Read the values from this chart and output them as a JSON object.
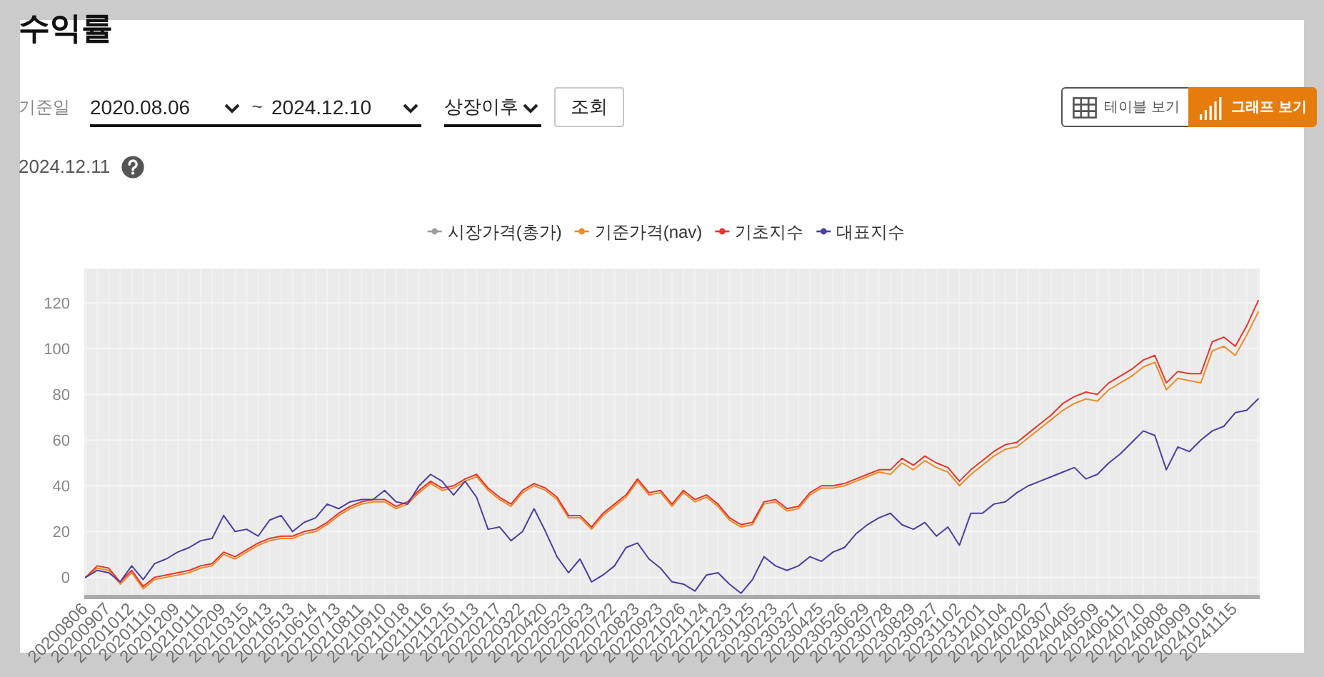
{
  "chart_data": {
    "type": "line",
    "title": "수익률",
    "subtitle": "2024.12.11",
    "annotations": [
      "기준일",
      "2020.08.06",
      "~",
      "2024.12.10",
      "상장이후",
      "조회",
      "테이블 보기",
      "그래프 보기"
    ],
    "categories": [
      "20200806",
      null,
      "20200907",
      null,
      "20201012",
      null,
      "20201110",
      null,
      "20201209",
      null,
      "20210111",
      null,
      "20210209",
      null,
      "20210315",
      null,
      "20210413",
      null,
      "20210513",
      null,
      "20210614",
      null,
      "20210713",
      null,
      "20210811",
      null,
      "20210910",
      null,
      "20211018",
      null,
      "20211116",
      null,
      "20211215",
      null,
      "20220113",
      null,
      "20220217",
      null,
      "20220322",
      null,
      "20220420",
      null,
      "20220523",
      null,
      "20220623",
      null,
      "20220722",
      null,
      "20220823",
      null,
      "20220923",
      null,
      "20221026",
      null,
      "20221124",
      null,
      "20221223",
      null,
      "20230125",
      null,
      "20230223",
      null,
      "20230327",
      null,
      "20230425",
      null,
      "20230526",
      null,
      "20230629",
      null,
      "20230728",
      null,
      "20230829",
      null,
      "20230927",
      null,
      "20231102",
      null,
      "20231201",
      null,
      "20240104",
      null,
      "20240202",
      null,
      "20240307",
      null,
      "20240405",
      null,
      "20240509",
      null,
      "20240611",
      null,
      "20240710",
      null,
      "20240808",
      null,
      "20240909",
      null,
      "20241016",
      null,
      "20241115",
      null,
      null
    ],
    "series": [
      {
        "name": "시장가격(총가)",
        "color": "#9e9e9e",
        "values": [
          null,
          null,
          null,
          null,
          null,
          null,
          null,
          null,
          null,
          null,
          null,
          null,
          null,
          null,
          null,
          null,
          null,
          null,
          null,
          null,
          null,
          null,
          null,
          null,
          null,
          null,
          null,
          null,
          null,
          null,
          null,
          null,
          null,
          null,
          null,
          null,
          null,
          null,
          null,
          null,
          null,
          null,
          null,
          null,
          null,
          null,
          null,
          null,
          null,
          null,
          null,
          null,
          null,
          null,
          null,
          null,
          null,
          null,
          null,
          null,
          null,
          null,
          null,
          null,
          null,
          null,
          null,
          null,
          null,
          null,
          null,
          null,
          null,
          null,
          null,
          null,
          null,
          null,
          null,
          null,
          null,
          null,
          null,
          null,
          null,
          null,
          null,
          null,
          null,
          null,
          null,
          null,
          null,
          null,
          null,
          null,
          null,
          null,
          null,
          null,
          null,
          null,
          null
        ]
      },
      {
        "name": "기준가격(nav)",
        "color": "#f08a24",
        "values": [
          0,
          4,
          3,
          -3,
          2,
          -5,
          -1,
          0,
          1,
          2,
          4,
          5,
          10,
          8,
          11,
          14,
          16,
          17,
          17,
          19,
          20,
          23,
          27,
          30,
          32,
          33,
          33,
          30,
          32,
          37,
          41,
          38,
          39,
          42,
          44,
          38,
          34,
          31,
          37,
          40,
          38,
          34,
          26,
          26,
          21,
          27,
          31,
          35,
          42,
          36,
          37,
          31,
          37,
          33,
          35,
          31,
          25,
          22,
          23,
          32,
          33,
          29,
          30,
          36,
          39,
          39,
          40,
          42,
          44,
          46,
          45,
          50,
          47,
          51,
          48,
          46,
          40,
          45,
          49,
          53,
          56,
          57,
          61,
          65,
          69,
          73,
          76,
          78,
          77,
          82,
          85,
          88,
          92,
          94,
          82,
          87,
          86,
          85,
          99,
          101,
          97,
          106,
          116
        ]
      },
      {
        "name": "기초지수",
        "color": "#e8352b",
        "values": [
          0,
          5,
          4,
          -2,
          3,
          -4,
          0,
          1,
          2,
          3,
          5,
          6,
          11,
          9,
          12,
          15,
          17,
          18,
          18,
          20,
          21,
          24,
          28,
          31,
          33,
          34,
          34,
          31,
          33,
          38,
          42,
          39,
          40,
          43,
          45,
          39,
          35,
          32,
          38,
          41,
          39,
          35,
          27,
          27,
          22,
          28,
          32,
          36,
          43,
          37,
          38,
          32,
          38,
          34,
          36,
          32,
          26,
          23,
          24,
          33,
          34,
          30,
          31,
          37,
          40,
          40,
          41,
          43,
          45,
          47,
          47,
          52,
          49,
          53,
          50,
          48,
          42,
          47,
          51,
          55,
          58,
          59,
          63,
          67,
          71,
          76,
          79,
          81,
          80,
          85,
          88,
          91,
          95,
          97,
          85,
          90,
          89,
          89,
          103,
          105,
          101,
          110,
          121
        ]
      },
      {
        "name": "대표지수",
        "color": "#4a3fa5",
        "values": [
          0,
          3,
          2,
          -2,
          5,
          -1,
          6,
          8,
          11,
          13,
          16,
          17,
          27,
          20,
          21,
          18,
          25,
          27,
          20,
          24,
          26,
          32,
          30,
          33,
          34,
          34,
          38,
          33,
          32,
          40,
          45,
          42,
          36,
          42,
          35,
          21,
          22,
          16,
          20,
          30,
          20,
          9,
          2,
          8,
          -2,
          1,
          5,
          13,
          15,
          8,
          4,
          -2,
          -3,
          -6,
          1,
          2,
          -3,
          -7,
          -1,
          9,
          5,
          3,
          5,
          9,
          7,
          11,
          13,
          19,
          23,
          26,
          28,
          23,
          21,
          24,
          18,
          22,
          14,
          28,
          28,
          32,
          33,
          37,
          40,
          42,
          44,
          46,
          48,
          43,
          45,
          50,
          54,
          59,
          64,
          62,
          47,
          57,
          55,
          60,
          64,
          66,
          72,
          73,
          78
        ]
      }
    ],
    "ylim": [
      -8,
      135
    ],
    "yticks": [
      0,
      20,
      40,
      60,
      80,
      100,
      120
    ],
    "grid": true,
    "legend": "top"
  }
}
